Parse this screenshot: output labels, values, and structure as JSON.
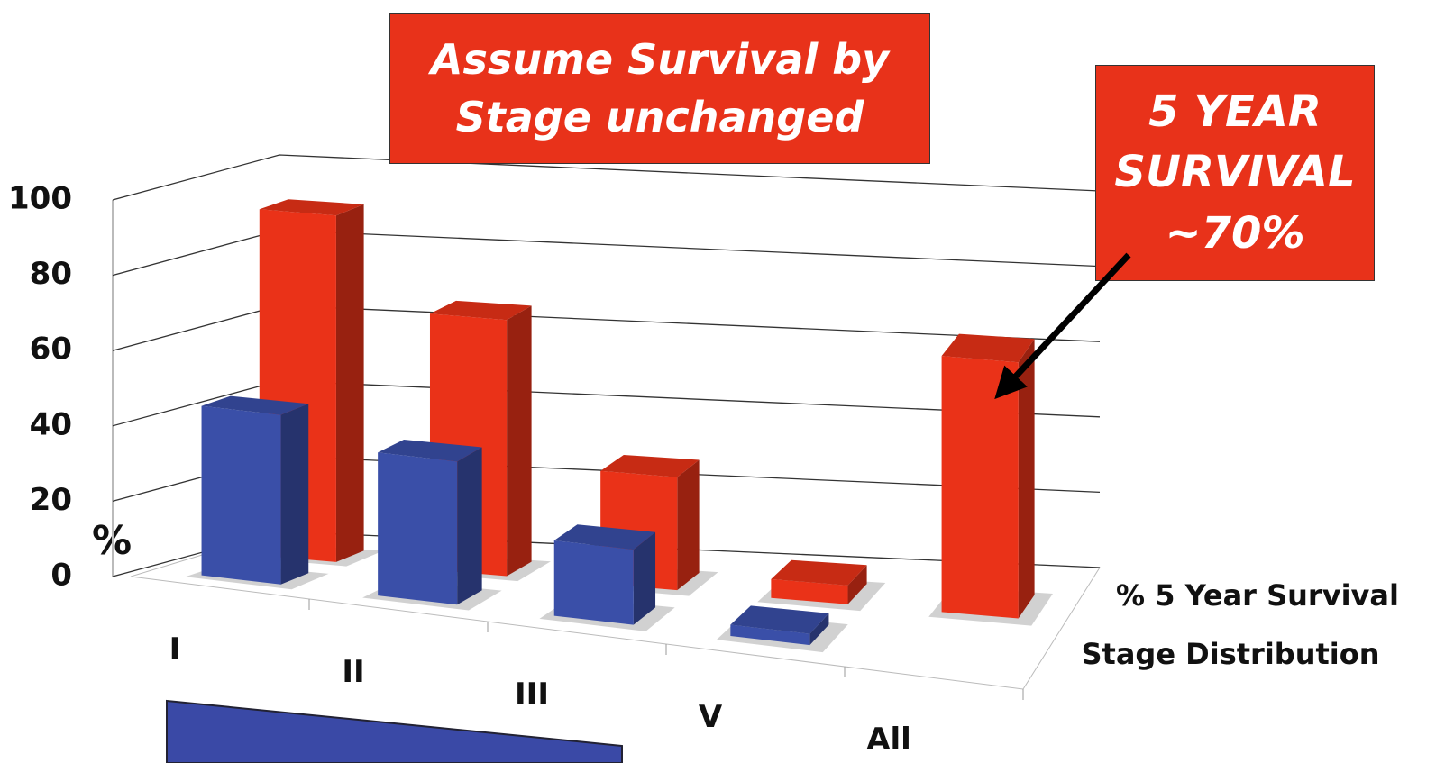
{
  "chart_data": {
    "type": "bar3d",
    "categories": [
      "I",
      "II",
      "III",
      "V",
      "All"
    ],
    "series": [
      {
        "name": "% 5 Year Survival",
        "color": "#ea3218",
        "values": [
          92,
          68,
          30,
          5,
          68
        ]
      },
      {
        "name": "Stage Distribution",
        "color": "#3a4fa8",
        "values": [
          45,
          38,
          20,
          3,
          null
        ]
      }
    ],
    "ylabel": "%",
    "ylim": [
      0,
      100
    ],
    "yticks": [
      0,
      20,
      40,
      60,
      80,
      100
    ],
    "grid": true,
    "annotations": [
      "Assume Survival by Stage unchanged",
      "5 YEAR SURVIVAL ~70%"
    ]
  }
}
